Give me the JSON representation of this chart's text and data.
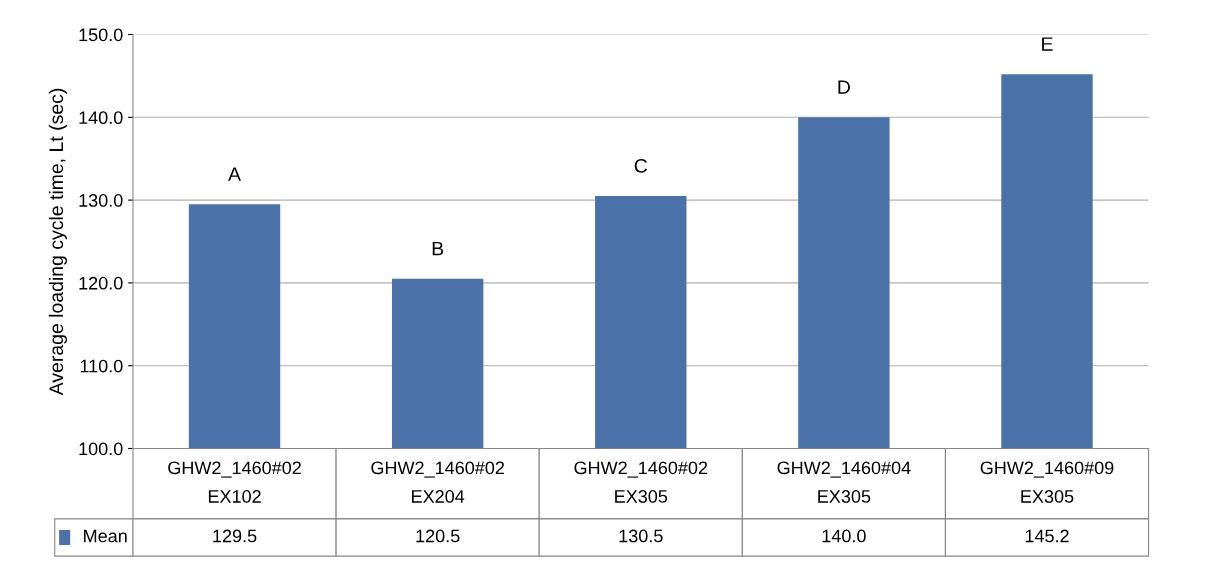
{
  "chart_data": {
    "type": "bar",
    "ylabel": "Average loading cycle time, Lt (sec)",
    "categories": [
      "GHW2_1460#02\nEX102",
      "GHW2_1460#02\nEX204",
      "GHW2_1460#02\nEX305",
      "GHW2_1460#04\nEX305",
      "GHW2_1460#09\nEX305"
    ],
    "series": [
      {
        "name": "Mean",
        "color": "#4a72a8",
        "values": [
          129.5,
          120.5,
          130.5,
          140.0,
          145.2
        ],
        "value_labels": [
          "129.5",
          "120.5",
          "130.5",
          "140.0",
          "145.2"
        ]
      }
    ],
    "ylim": [
      100,
      150
    ],
    "yticks": [
      {
        "value": 100,
        "label": "100.0"
      },
      {
        "value": 110,
        "label": "110.0"
      },
      {
        "value": 120,
        "label": "120.0"
      },
      {
        "value": 130,
        "label": "130.0"
      },
      {
        "value": 140,
        "label": "140.0"
      },
      {
        "value": 150,
        "label": "150.0"
      }
    ],
    "grid": "y",
    "legend": "bottom left",
    "annotations": [
      "A",
      "B",
      "C",
      "D",
      "E"
    ]
  }
}
